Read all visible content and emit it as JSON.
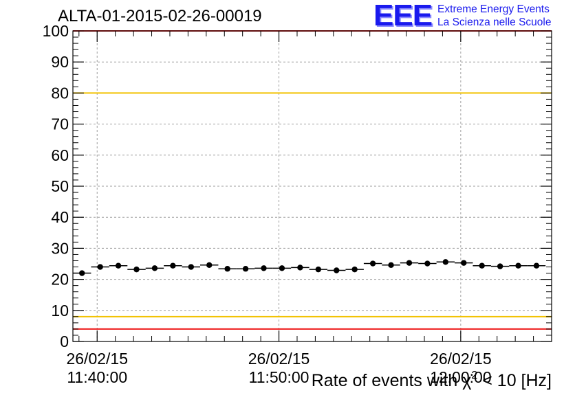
{
  "header": {
    "run_title": "ALTA-01-2015-02-26-00019",
    "logo_mark": "EEE",
    "logo_line1": "Extreme Energy Events",
    "logo_line2": "La Scienza nelle Scuole"
  },
  "colors": {
    "limit_red": "#ee1c1c",
    "limit_yellow": "#f2c200",
    "marker": "#000000",
    "grid": "#9e9e9e",
    "logo_blue": "#1a1aee"
  },
  "chart_data": {
    "type": "scatter",
    "title": "ALTA-01-2015-02-26-00019",
    "xlabel_parts": {
      "prefix": "Rate of events with ",
      "chi": "χ",
      "sup": "2",
      "suffix": " < 10 [Hz]"
    },
    "ylim": [
      0,
      100
    ],
    "xlim": [
      "11:38:40",
      "12:05:00"
    ],
    "y_ticks": [
      0,
      10,
      20,
      30,
      40,
      50,
      60,
      70,
      80,
      90,
      100
    ],
    "x_ticks": [
      {
        "time": "11:40:00",
        "date": "26/02/15"
      },
      {
        "time": "11:50:00",
        "date": "26/02/15"
      },
      {
        "time": "12:00:00",
        "date": "26/02/15"
      }
    ],
    "grid": true,
    "bin_width_s": 60,
    "reference_lines": [
      {
        "y": 100,
        "color": "red"
      },
      {
        "y": 80,
        "color": "yellow"
      },
      {
        "y": 8,
        "color": "yellow"
      },
      {
        "y": 4,
        "color": "red"
      }
    ],
    "points": [
      {
        "x": "11:39:10",
        "y": 22.0
      },
      {
        "x": "11:40:10",
        "y": 24.0
      },
      {
        "x": "11:41:10",
        "y": 24.4
      },
      {
        "x": "11:42:10",
        "y": 23.2
      },
      {
        "x": "11:43:10",
        "y": 23.6
      },
      {
        "x": "11:44:10",
        "y": 24.4
      },
      {
        "x": "11:45:10",
        "y": 24.0
      },
      {
        "x": "11:46:10",
        "y": 24.6
      },
      {
        "x": "11:47:10",
        "y": 23.4
      },
      {
        "x": "11:48:10",
        "y": 23.4
      },
      {
        "x": "11:49:10",
        "y": 23.6
      },
      {
        "x": "11:50:10",
        "y": 23.6
      },
      {
        "x": "11:51:10",
        "y": 23.8
      },
      {
        "x": "11:52:10",
        "y": 23.2
      },
      {
        "x": "11:53:10",
        "y": 22.9
      },
      {
        "x": "11:54:10",
        "y": 23.2
      },
      {
        "x": "11:55:10",
        "y": 25.1
      },
      {
        "x": "11:56:10",
        "y": 24.6
      },
      {
        "x": "11:57:10",
        "y": 25.3
      },
      {
        "x": "11:58:10",
        "y": 25.1
      },
      {
        "x": "11:59:10",
        "y": 25.6
      },
      {
        "x": "12:00:10",
        "y": 25.3
      },
      {
        "x": "12:01:10",
        "y": 24.4
      },
      {
        "x": "12:02:10",
        "y": 24.2
      },
      {
        "x": "12:03:10",
        "y": 24.4
      },
      {
        "x": "12:04:10",
        "y": 24.4
      }
    ]
  }
}
